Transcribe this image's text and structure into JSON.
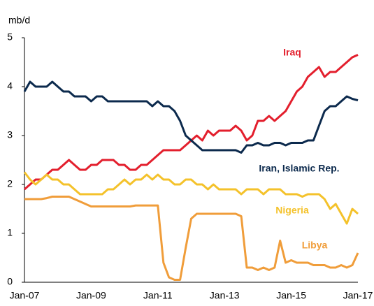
{
  "chart_data": {
    "type": "line",
    "y_label": "mb/d",
    "categories": [
      "Jan-07",
      null,
      null,
      null,
      null,
      null,
      null,
      null,
      null,
      null,
      null,
      null,
      "Jan-09",
      null,
      null,
      null,
      null,
      null,
      null,
      null,
      null,
      null,
      null,
      null,
      "Jan-11",
      null,
      null,
      null,
      null,
      null,
      null,
      null,
      null,
      null,
      null,
      null,
      "Jan-13",
      null,
      null,
      null,
      null,
      null,
      null,
      null,
      null,
      null,
      null,
      null,
      "Jan-15",
      null,
      null,
      null,
      null,
      null,
      null,
      null,
      null,
      null,
      null,
      null,
      "Jan-17"
    ],
    "ylim": [
      0,
      5
    ],
    "yticks": [
      0,
      1,
      2,
      3,
      4,
      5
    ],
    "grid": false,
    "series": [
      {
        "name": "Iraq",
        "color": "#e31f2d",
        "values": [
          1.9,
          2.0,
          2.1,
          2.1,
          2.2,
          2.3,
          2.3,
          2.4,
          2.5,
          2.4,
          2.3,
          2.3,
          2.4,
          2.4,
          2.5,
          2.5,
          2.5,
          2.4,
          2.4,
          2.3,
          2.3,
          2.4,
          2.4,
          2.5,
          2.6,
          2.7,
          2.7,
          2.7,
          2.7,
          2.8,
          2.9,
          3.0,
          2.9,
          3.1,
          3.0,
          3.1,
          3.1,
          3.1,
          3.2,
          3.1,
          2.9,
          3.0,
          3.3,
          3.3,
          3.4,
          3.3,
          3.4,
          3.5,
          3.7,
          3.9,
          4.0,
          4.2,
          4.3,
          4.4,
          4.2,
          4.3,
          4.3,
          4.4,
          4.5,
          4.6,
          4.65
        ]
      },
      {
        "name": "Iran, Islamic Rep.",
        "color": "#0c2a4d",
        "values": [
          3.9,
          4.1,
          4.0,
          4.0,
          4.0,
          4.1,
          4.0,
          3.9,
          3.9,
          3.8,
          3.8,
          3.8,
          3.7,
          3.8,
          3.8,
          3.7,
          3.7,
          3.7,
          3.7,
          3.7,
          3.7,
          3.7,
          3.7,
          3.6,
          3.7,
          3.6,
          3.6,
          3.5,
          3.3,
          3.0,
          2.9,
          2.8,
          2.7,
          2.7,
          2.7,
          2.7,
          2.7,
          2.7,
          2.7,
          2.65,
          2.8,
          2.8,
          2.85,
          2.8,
          2.8,
          2.85,
          2.85,
          2.8,
          2.85,
          2.85,
          2.85,
          2.9,
          2.9,
          3.2,
          3.5,
          3.6,
          3.6,
          3.7,
          3.8,
          3.75,
          3.72
        ]
      },
      {
        "name": "Nigeria",
        "color": "#f4c22b",
        "values": [
          2.25,
          2.1,
          2.0,
          2.1,
          2.2,
          2.1,
          2.1,
          2.0,
          2.0,
          1.9,
          1.8,
          1.8,
          1.8,
          1.8,
          1.8,
          1.9,
          1.9,
          2.0,
          2.1,
          2.0,
          2.1,
          2.1,
          2.2,
          2.1,
          2.2,
          2.1,
          2.1,
          2.0,
          2.0,
          2.1,
          2.1,
          2.0,
          2.0,
          1.9,
          2.0,
          1.9,
          1.9,
          1.9,
          1.9,
          1.8,
          1.9,
          1.9,
          1.9,
          1.8,
          1.9,
          1.9,
          1.9,
          1.8,
          1.8,
          1.8,
          1.75,
          1.8,
          1.8,
          1.8,
          1.7,
          1.5,
          1.6,
          1.4,
          1.2,
          1.5,
          1.4
        ]
      },
      {
        "name": "Libya",
        "color": "#f09d3a",
        "values": [
          1.7,
          1.7,
          1.7,
          1.7,
          1.72,
          1.75,
          1.75,
          1.75,
          1.75,
          1.7,
          1.65,
          1.6,
          1.55,
          1.55,
          1.55,
          1.55,
          1.55,
          1.55,
          1.55,
          1.55,
          1.57,
          1.57,
          1.57,
          1.57,
          1.57,
          0.4,
          0.1,
          0.05,
          0.05,
          0.7,
          1.3,
          1.4,
          1.4,
          1.4,
          1.4,
          1.4,
          1.4,
          1.4,
          1.4,
          1.35,
          0.3,
          0.3,
          0.25,
          0.3,
          0.25,
          0.3,
          0.85,
          0.4,
          0.45,
          0.4,
          0.4,
          0.4,
          0.35,
          0.35,
          0.35,
          0.3,
          0.3,
          0.35,
          0.3,
          0.35,
          0.6
        ]
      }
    ]
  }
}
